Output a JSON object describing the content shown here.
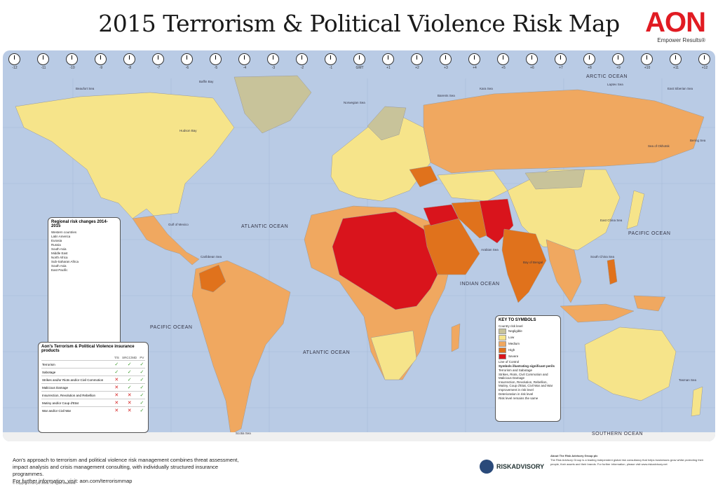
{
  "title": "2015 Terrorism & Political Violence Risk Map",
  "brand": {
    "logo": "AON",
    "tagline": "Empower Results®"
  },
  "colors": {
    "ocean": "#b9cbe5",
    "negligible": "#c8c39a",
    "low": "#f6e48a",
    "medium": "#f0a860",
    "high": "#e0721c",
    "severe": "#d9141c"
  },
  "timezones": [
    "-12",
    "-11",
    "-10",
    "-9",
    "-8",
    "-7",
    "-6",
    "-5",
    "-4",
    "-3",
    "-2",
    "-1",
    "GMT",
    "+1",
    "+2",
    "+3",
    "+4",
    "+5",
    "+6",
    "+7",
    "+8",
    "+9",
    "+10",
    "+11",
    "+12"
  ],
  "oceans": {
    "arctic": "ARCTIC OCEAN",
    "atlantic_n": "ATLANTIC OCEAN",
    "atlantic_s": "ATLANTIC OCEAN",
    "pacific_e": "PACIFIC OCEAN",
    "pacific_w": "PACIFIC OCEAN",
    "indian": "INDIAN OCEAN",
    "southern": "SOUTHERN OCEAN"
  },
  "seas": {
    "beaufort": "Beaufort Sea",
    "baffin": "Baffin Bay",
    "hudson": "Hudson Bay",
    "norwegian": "Norwegian Sea",
    "barents": "Barents Sea",
    "kara": "Kara Sea",
    "laptev": "Laptev Sea",
    "east_siberian": "East Siberian Sea",
    "bering": "Bering Sea",
    "okhotsk": "Sea of Okhotsk",
    "gulf_mexico": "Gulf of Mexico",
    "caribbean": "Caribbean Sea",
    "arabian": "Arabian Sea",
    "bengal": "Bay of Bengal",
    "south_china": "South China Sea",
    "east_china": "East China Sea",
    "tasman": "Tasman Sea",
    "scotia": "Scotia Sea"
  },
  "legend_regional": {
    "title": "Regional risk changes 2014-2015",
    "rows": [
      "Western countries",
      "Latin America",
      "Eurasia",
      "Russia",
      "South Asia",
      "Middle East",
      "North Africa",
      "Sub-Saharan Africa",
      "South Asia",
      "East Pacific"
    ]
  },
  "legend_keys": {
    "title": "KEY TO SYMBOLS",
    "subtitle": "Country risk level",
    "levels": [
      "Negligible",
      "Low",
      "Medium",
      "High",
      "Severe"
    ],
    "line_of_control": "Line of Control",
    "perils_title": "Symbols illustrating significant perils",
    "perils": [
      "Terrorism and Sabotage",
      "Strikes, Riots, Civil Commotion and Malicious Damage",
      "Insurrection, Revolution, Rebellion, Mutiny, Coup d'Etat, Civil War and War",
      "Improvement in risk level",
      "Deterioration in risk level",
      "Risk level remains the same"
    ]
  },
  "legend_insurance": {
    "title": "Aon's Terrorism & Political Violence insurance products",
    "columns": [
      "T/S",
      "SRCC/MD",
      "PV"
    ],
    "rows": [
      {
        "label": "Terrorism",
        "cells": [
          "✓",
          "✓",
          "✓"
        ]
      },
      {
        "label": "Sabotage",
        "cells": [
          "✓",
          "✓",
          "✓"
        ]
      },
      {
        "label": "Strikes and/or Riots and/or Civil Commotion",
        "cells": [
          "✕",
          "✓",
          "✓"
        ]
      },
      {
        "label": "Malicious Damage",
        "cells": [
          "✕",
          "✓",
          "✓"
        ]
      },
      {
        "label": "Insurrection, Revolution and Rebellion",
        "cells": [
          "✕",
          "✕",
          "✓"
        ]
      },
      {
        "label": "Mutiny and/or Coup d'Etat",
        "cells": [
          "✕",
          "✕",
          "✓"
        ]
      },
      {
        "label": "War and/or Civil War",
        "cells": [
          "✕",
          "✕",
          "✓"
        ]
      }
    ]
  },
  "footer": {
    "text": "Aon's approach to terrorism and political violence risk management combines threat assessment, impact analysis and crisis management consulting, with individually structured insurance programmes.",
    "link": "For further information, visit: aon.com/terrorismmap",
    "copyright": "© Copyright Aon plc 2015. All rights reserved.",
    "partner": "RISKADVISORY",
    "about_title": "About The Risk Advisory Group plc",
    "about_text": "The Risk Advisory Group is a leading independent global risk consultancy that helps businesses grow whilst protecting their people, their assets and their brands. For further information, please visit www.riskadvisory.net"
  }
}
